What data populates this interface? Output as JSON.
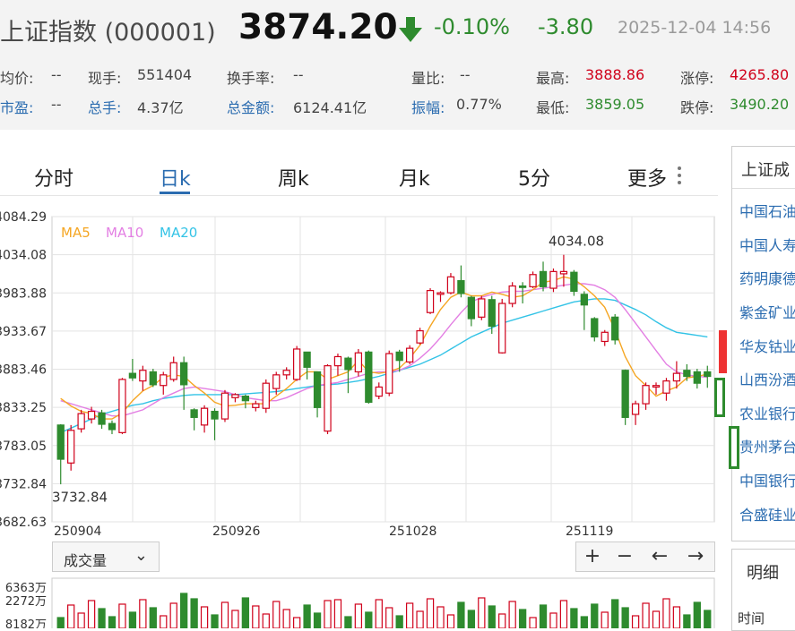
{
  "header": {
    "name": "上证指数 (000001)",
    "price": "3874.20",
    "change_pct": "-0.10%",
    "change": "-3.80",
    "time": "2025-12-04 14:56"
  },
  "stats": {
    "avg_label": "均价:",
    "avg": "--",
    "vol_now_label": "现手:",
    "vol_now": "551404",
    "turnover_label": "换手率:",
    "turnover": "--",
    "ratio_label": "量比:",
    "ratio": "--",
    "high_label": "最高:",
    "high": "3888.86",
    "limit_up_label": "涨停:",
    "limit_up": "4265.80",
    "pe_label": "市盈:",
    "pe": "--",
    "total_vol_label": "总手:",
    "total_vol": "4.37亿",
    "amount_label": "总金额:",
    "amount": "6124.41亿",
    "amplitude_label": "振幅:",
    "amplitude": "0.77%",
    "low_label": "最低:",
    "low": "3859.05",
    "limit_down_label": "跌停:",
    "limit_down": "3490.20"
  },
  "tabs": [
    "分时",
    "日k",
    "周k",
    "月k",
    "5分",
    "更多"
  ],
  "colors": {
    "up": "#d0021b",
    "down": "#2e8b2e",
    "ma5": "#f5a623",
    "ma10": "#e37fe3",
    "ma20": "#33c3e6",
    "accent": "#2b6cb0"
  },
  "volume": {
    "select_label": "成交量",
    "axis_labels": [
      "6363万",
      "2272万",
      "8182万"
    ],
    "controls": {
      "zoom_in": "+",
      "zoom_out": "−",
      "left": "←",
      "right": "→"
    }
  },
  "sidebar": {
    "title": "上证成",
    "items": [
      "中国石油",
      "中国人寿",
      "药明康德",
      "紫金矿业",
      "华友钴业",
      "山西汾酒",
      "农业银行",
      "贵州茅台",
      "中国银行",
      "合盛硅业"
    ]
  },
  "detail": {
    "title": "明细",
    "subtitle": "时间"
  },
  "chart_data": {
    "type": "candlestick",
    "y_ticks": [
      "4084.29",
      "4034.08",
      "3983.88",
      "3933.67",
      "3883.46",
      "3833.25",
      "3783.05",
      "3732.84",
      "3682.63"
    ],
    "ylim": [
      3682.63,
      4084.29
    ],
    "x_labels": [
      "250904",
      "250926",
      "251028",
      "251119"
    ],
    "legend": [
      "MA5",
      "MA10",
      "MA20"
    ],
    "legend_placement": "top-left",
    "max_label": "4034.08",
    "min_label": "3732.84",
    "candles": [
      [
        3810,
        3765,
        3811,
        3732
      ],
      [
        3760,
        3803,
        3810,
        3750
      ],
      [
        3805,
        3825,
        3830,
        3800
      ],
      [
        3818,
        3828,
        3834,
        3812
      ],
      [
        3826,
        3811,
        3830,
        3805
      ],
      [
        3812,
        3804,
        3816,
        3798
      ],
      [
        3800,
        3870,
        3872,
        3798
      ],
      [
        3878,
        3872,
        3897,
        3868
      ],
      [
        3868,
        3882,
        3888,
        3855
      ],
      [
        3880,
        3863,
        3884,
        3860
      ],
      [
        3862,
        3876,
        3880,
        3850
      ],
      [
        3870,
        3892,
        3900,
        3867
      ],
      [
        3892,
        3863,
        3900,
        3830
      ],
      [
        3830,
        3820,
        3832,
        3803
      ],
      [
        3810,
        3832,
        3836,
        3800
      ],
      [
        3828,
        3818,
        3832,
        3790
      ],
      [
        3818,
        3852,
        3856,
        3814
      ],
      [
        3846,
        3850,
        3852,
        3840
      ],
      [
        3848,
        3842,
        3850,
        3832
      ],
      [
        3833,
        3838,
        3842,
        3828
      ],
      [
        3832,
        3865,
        3870,
        3826
      ],
      [
        3858,
        3876,
        3880,
        3850
      ],
      [
        3876,
        3882,
        3886,
        3870
      ],
      [
        3870,
        3910,
        3914,
        3868
      ],
      [
        3906,
        3886,
        3906,
        3870
      ],
      [
        3880,
        3833,
        3880,
        3820
      ],
      [
        3802,
        3888,
        3890,
        3798
      ],
      [
        3888,
        3900,
        3904,
        3875
      ],
      [
        3898,
        3883,
        3900,
        3852
      ],
      [
        3880,
        3905,
        3910,
        3874
      ],
      [
        3906,
        3840,
        3908,
        3838
      ],
      [
        3848,
        3860,
        3866,
        3844
      ],
      [
        3852,
        3904,
        3908,
        3848
      ],
      [
        3906,
        3895,
        3909,
        3880
      ],
      [
        3893,
        3911,
        3915,
        3890
      ],
      [
        3918,
        3934,
        3938,
        3916
      ],
      [
        3958,
        3987,
        3990,
        3956
      ],
      [
        3982,
        3984,
        3986,
        3972
      ],
      [
        3984,
        4005,
        4010,
        3982
      ],
      [
        4000,
        3983,
        4020,
        3978
      ],
      [
        3978,
        3950,
        3980,
        3940
      ],
      [
        3952,
        3976,
        3980,
        3948
      ],
      [
        3975,
        3940,
        3980,
        3930
      ],
      [
        3905,
        3970,
        3976,
        3904
      ],
      [
        3970,
        3993,
        3998,
        3965
      ],
      [
        3993,
        3991,
        3998,
        3970
      ],
      [
        3992,
        4008,
        4012,
        3990
      ],
      [
        4012,
        3992,
        4025,
        3986
      ],
      [
        3990,
        4012,
        4016,
        3985
      ],
      [
        4009,
        4012,
        4034,
        3992
      ],
      [
        4011,
        3986,
        4014,
        3980
      ],
      [
        3982,
        3968,
        3986,
        3935
      ],
      [
        3950,
        3926,
        3952,
        3920
      ],
      [
        3920,
        3932,
        3935,
        3914
      ],
      [
        3952,
        3922,
        3956,
        3916
      ],
      [
        3882,
        3820,
        3883,
        3810
      ],
      [
        3824,
        3838,
        3842,
        3810
      ],
      [
        3838,
        3862,
        3866,
        3830
      ],
      [
        3860,
        3862,
        3866,
        3850
      ],
      [
        3852,
        3868,
        3872,
        3842
      ],
      [
        3868,
        3878,
        3894,
        3858
      ],
      [
        3882,
        3874,
        3890,
        3868
      ],
      [
        3880,
        3865,
        3884,
        3858
      ],
      [
        3880,
        3874,
        3888,
        3859
      ]
    ],
    "ma5": [
      3845,
      3835,
      3828,
      3825,
      3818,
      3818,
      3826,
      3842,
      3855,
      3862,
      3873,
      3876,
      3874,
      3862,
      3852,
      3840,
      3835,
      3836,
      3838,
      3838,
      3838,
      3848,
      3858,
      3870,
      3880,
      3880,
      3870,
      3875,
      3880,
      3895,
      3880,
      3878,
      3880,
      3885,
      3898,
      3915,
      3940,
      3962,
      3978,
      3985,
      3980,
      3980,
      3985,
      3982,
      3978,
      3980,
      3988,
      3998,
      4000,
      4005,
      4002,
      3992,
      3980,
      3965,
      3935,
      3900,
      3875,
      3862,
      3848,
      3855,
      3860,
      3872,
      3874,
      3877
    ],
    "ma10": [
      3842,
      3838,
      3834,
      3830,
      3826,
      3822,
      3822,
      3826,
      3830,
      3838,
      3846,
      3852,
      3858,
      3860,
      3858,
      3856,
      3854,
      3850,
      3846,
      3844,
      3842,
      3842,
      3846,
      3852,
      3858,
      3862,
      3864,
      3866,
      3870,
      3874,
      3878,
      3880,
      3880,
      3882,
      3888,
      3898,
      3910,
      3925,
      3942,
      3958,
      3972,
      3978,
      3982,
      3985,
      3986,
      3986,
      3988,
      3990,
      3992,
      3994,
      3996,
      3996,
      3994,
      3988,
      3978,
      3962,
      3944,
      3926,
      3908,
      3890,
      3880,
      3876,
      3874,
      3873
    ],
    "ma20": [
      3800,
      3806,
      3812,
      3818,
      3824,
      3828,
      3832,
      3836,
      3838,
      3842,
      3845,
      3847,
      3849,
      3850,
      3850,
      3850,
      3850,
      3850,
      3851,
      3852,
      3853,
      3854,
      3856,
      3858,
      3860,
      3862,
      3863,
      3864,
      3866,
      3868,
      3871,
      3874,
      3878,
      3882,
      3886,
      3890,
      3896,
      3902,
      3910,
      3918,
      3926,
      3932,
      3938,
      3944,
      3948,
      3952,
      3956,
      3960,
      3964,
      3968,
      3972,
      3974,
      3976,
      3976,
      3974,
      3968,
      3962,
      3955,
      3946,
      3938,
      3932,
      3930,
      3928,
      3926
    ]
  }
}
